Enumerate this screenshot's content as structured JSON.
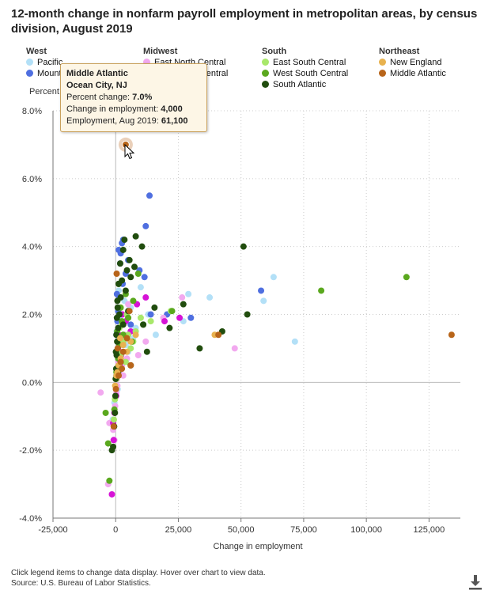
{
  "title": "12-month change in nonfarm payroll employment in metropolitan areas, by census division, August 2019",
  "legend": {
    "groups": [
      {
        "name": "West",
        "items": [
          {
            "label": "Pacific",
            "color": "#b3e0f7"
          },
          {
            "label": "Mountain",
            "color": "#4f6fe0"
          }
        ]
      },
      {
        "name": "Midwest",
        "items": [
          {
            "label": "East North Central",
            "color": "#f2a9ef"
          },
          {
            "label": "West North Central",
            "color": "#d613d6"
          }
        ]
      },
      {
        "name": "South",
        "items": [
          {
            "label": "East South Central",
            "color": "#a8e86a"
          },
          {
            "label": "West South Central",
            "color": "#5aa81e"
          },
          {
            "label": "South Atlantic",
            "color": "#214d0e"
          }
        ]
      },
      {
        "name": "Northeast",
        "items": [
          {
            "label": "New England",
            "color": "#e8b24f"
          },
          {
            "label": "Middle Atlantic",
            "color": "#b8651a"
          }
        ]
      }
    ]
  },
  "tooltip": {
    "division": "Middle Atlantic",
    "area": "Ocean City, NJ",
    "pct_label": "Percent change: ",
    "pct_value": "7.0%",
    "chg_label": "Change in employment: ",
    "chg_value": "4,000",
    "emp_label": "Employment, Aug 2019: ",
    "emp_value": "61,100"
  },
  "footer": {
    "note": "Click legend items to change data display. Hover over chart to view data.",
    "source": "Source: U.S. Bureau of Labor Statistics."
  },
  "icons": {
    "download": "download-icon",
    "cursor": "pointer-cursor-icon"
  },
  "chart_data": {
    "type": "scatter",
    "title": "12-month change in nonfarm payroll employment in metropolitan areas, by census division, August 2019",
    "xlabel": "Change in employment",
    "ylabel": "Percent change",
    "xlim": [
      -25000,
      137500
    ],
    "ylim": [
      -4.0,
      8.0
    ],
    "xticks": [
      -25000,
      0,
      25000,
      50000,
      75000,
      100000,
      125000
    ],
    "xtick_labels": [
      "-25,000",
      "0",
      "25,000",
      "50,000",
      "75,000",
      "100,000",
      "125,000"
    ],
    "yticks": [
      -4,
      -2,
      0,
      2,
      4,
      6,
      8
    ],
    "ytick_labels": [
      "-4.0%",
      "-2.0%",
      "0.0%",
      "2.0%",
      "4.0%",
      "6.0%",
      "8.0%"
    ],
    "grid": true,
    "legend_position": "top",
    "series": [
      {
        "name": "Pacific",
        "color": "#b3e0f7",
        "points": [
          [
            71500,
            1.2
          ],
          [
            63000,
            3.1
          ],
          [
            59000,
            2.4
          ],
          [
            37500,
            2.5
          ],
          [
            29000,
            2.6
          ],
          [
            16000,
            1.4
          ],
          [
            13000,
            2.0
          ],
          [
            10000,
            2.8
          ],
          [
            8000,
            1.6
          ],
          [
            6000,
            2.2
          ],
          [
            5000,
            0.9
          ],
          [
            4000,
            1.1
          ],
          [
            3000,
            1.7
          ],
          [
            2500,
            0.6
          ],
          [
            2000,
            1.3
          ],
          [
            1500,
            1.9
          ],
          [
            1000,
            0.8
          ],
          [
            700,
            0.4
          ],
          [
            400,
            1.5
          ],
          [
            200,
            0.2
          ],
          [
            -500,
            -0.6
          ],
          [
            -1200,
            -1.1
          ],
          [
            27000,
            1.8
          ],
          [
            22000,
            2.1
          ],
          [
            7000,
            1.3
          ],
          [
            3500,
            2.4
          ],
          [
            1200,
            2.7
          ],
          [
            800,
            -0.2
          ]
        ]
      },
      {
        "name": "Mountain",
        "color": "#4f6fe0",
        "points": [
          [
            58000,
            2.7
          ],
          [
            30000,
            1.9
          ],
          [
            20500,
            2.0
          ],
          [
            14000,
            2.0
          ],
          [
            13500,
            5.5
          ],
          [
            12000,
            4.6
          ],
          [
            11500,
            3.1
          ],
          [
            9500,
            3.3
          ],
          [
            5000,
            3.6
          ],
          [
            4000,
            3.2
          ],
          [
            3000,
            4.2
          ],
          [
            2500,
            4.1
          ],
          [
            2000,
            3.8
          ],
          [
            1500,
            2.5
          ],
          [
            1200,
            3.9
          ],
          [
            900,
            2.2
          ],
          [
            700,
            1.8
          ],
          [
            500,
            2.6
          ],
          [
            300,
            1.4
          ],
          [
            200,
            0.9
          ],
          [
            6000,
            1.7
          ],
          [
            2800,
            2.9
          ],
          [
            1800,
            3.5
          ],
          [
            1000,
            2.1
          ]
        ]
      },
      {
        "name": "East North Central",
        "color": "#f2a9ef",
        "points": [
          [
            47500,
            1.0
          ],
          [
            26500,
            2.5
          ],
          [
            19000,
            1.9
          ],
          [
            12000,
            1.2
          ],
          [
            9000,
            0.8
          ],
          [
            6000,
            1.2
          ],
          [
            4500,
            0.7
          ],
          [
            3500,
            1.4
          ],
          [
            2500,
            0.5
          ],
          [
            2000,
            0.9
          ],
          [
            1500,
            0.3
          ],
          [
            1000,
            0.6
          ],
          [
            600,
            0.1
          ],
          [
            300,
            -0.3
          ],
          [
            -200,
            -0.7
          ],
          [
            -1000,
            -1.4
          ],
          [
            -2500,
            -1.2
          ],
          [
            -3000,
            -3.0
          ],
          [
            -6000,
            -0.3
          ],
          [
            5000,
            2.3
          ],
          [
            3000,
            0.2
          ],
          [
            1800,
            1.1
          ],
          [
            700,
            -0.1
          ],
          [
            -500,
            -1.7
          ]
        ]
      },
      {
        "name": "West North Central",
        "color": "#d613d6",
        "points": [
          [
            25500,
            1.9
          ],
          [
            19500,
            1.8
          ],
          [
            12000,
            2.5
          ],
          [
            8500,
            2.3
          ],
          [
            6000,
            1.5
          ],
          [
            4000,
            1.8
          ],
          [
            3000,
            1.2
          ],
          [
            2200,
            0.8
          ],
          [
            1500,
            0.5
          ],
          [
            900,
            1.0
          ],
          [
            500,
            0.2
          ],
          [
            200,
            -0.4
          ],
          [
            -500,
            -0.9
          ],
          [
            -800,
            -1.7
          ],
          [
            -1500,
            -3.3
          ],
          [
            -1000,
            -1.2
          ],
          [
            2700,
            2.0
          ],
          [
            1200,
            1.4
          ]
        ]
      },
      {
        "name": "East South Central",
        "color": "#a8e86a",
        "points": [
          [
            22000,
            2.1
          ],
          [
            14000,
            1.8
          ],
          [
            10000,
            1.9
          ],
          [
            8000,
            1.5
          ],
          [
            6000,
            1.0
          ],
          [
            5000,
            1.4
          ],
          [
            4000,
            0.6
          ],
          [
            3000,
            1.2
          ],
          [
            2000,
            0.8
          ],
          [
            1500,
            1.6
          ],
          [
            1000,
            0.4
          ],
          [
            600,
            0.9
          ],
          [
            300,
            0.1
          ],
          [
            -300,
            -0.5
          ],
          [
            -700,
            -1.1
          ],
          [
            7000,
            1.2
          ],
          [
            4500,
            2.0
          ],
          [
            2500,
            1.7
          ]
        ]
      },
      {
        "name": "West South Central",
        "color": "#5aa81e",
        "points": [
          [
            116000,
            3.1
          ],
          [
            82000,
            2.7
          ],
          [
            22500,
            2.1
          ],
          [
            11000,
            1.7
          ],
          [
            9000,
            3.2
          ],
          [
            7000,
            2.4
          ],
          [
            5000,
            1.9
          ],
          [
            4000,
            2.6
          ],
          [
            3000,
            1.4
          ],
          [
            2000,
            2.2
          ],
          [
            1500,
            1.1
          ],
          [
            1000,
            0.7
          ],
          [
            600,
            1.5
          ],
          [
            300,
            0.3
          ],
          [
            -500,
            -0.8
          ],
          [
            -3000,
            -1.8
          ],
          [
            -4000,
            -0.9
          ],
          [
            -2500,
            -2.9
          ],
          [
            6500,
            1.2
          ],
          [
            2500,
            1.8
          ],
          [
            1200,
            2.9
          ]
        ]
      },
      {
        "name": "South Atlantic",
        "color": "#214d0e",
        "points": [
          [
            51000,
            4.0
          ],
          [
            52500,
            2.0
          ],
          [
            42500,
            1.5
          ],
          [
            33500,
            1.0
          ],
          [
            27000,
            2.3
          ],
          [
            21500,
            1.6
          ],
          [
            15500,
            2.2
          ],
          [
            12500,
            0.9
          ],
          [
            11000,
            1.7
          ],
          [
            10500,
            4.0
          ],
          [
            8000,
            4.3
          ],
          [
            7500,
            3.4
          ],
          [
            6000,
            3.1
          ],
          [
            5500,
            3.6
          ],
          [
            5000,
            2.1
          ],
          [
            4500,
            3.3
          ],
          [
            4000,
            2.7
          ],
          [
            3500,
            4.2
          ],
          [
            3000,
            3.9
          ],
          [
            2500,
            3.0
          ],
          [
            2000,
            2.5
          ],
          [
            1800,
            3.5
          ],
          [
            1500,
            2.0
          ],
          [
            1200,
            2.9
          ],
          [
            1000,
            1.6
          ],
          [
            800,
            2.2
          ],
          [
            600,
            1.2
          ],
          [
            500,
            1.9
          ],
          [
            400,
            0.8
          ],
          [
            300,
            1.4
          ],
          [
            200,
            0.4
          ],
          [
            100,
            0.9
          ],
          [
            0,
            0.1
          ],
          [
            -100,
            -0.4
          ],
          [
            -300,
            -0.9
          ],
          [
            -600,
            -1.3
          ],
          [
            -1000,
            -1.9
          ],
          [
            -1500,
            -2.0
          ],
          [
            3000,
            1.7
          ],
          [
            6000,
            0.5
          ],
          [
            2000,
            0.6
          ],
          [
            1000,
            0.3
          ],
          [
            700,
            2.4
          ]
        ]
      },
      {
        "name": "New England",
        "color": "#e8b24f",
        "points": [
          [
            39500,
            1.4
          ],
          [
            8000,
            1.4
          ],
          [
            6000,
            1.2
          ],
          [
            4500,
            0.9
          ],
          [
            3000,
            1.1
          ],
          [
            2000,
            0.7
          ],
          [
            1200,
            0.5
          ],
          [
            700,
            0.3
          ],
          [
            300,
            0.2
          ],
          [
            -200,
            -0.1
          ],
          [
            1800,
            1.3
          ]
        ]
      },
      {
        "name": "Middle Atlantic",
        "color": "#b8651a",
        "points": [
          [
            134000,
            1.4
          ],
          [
            41000,
            1.4
          ],
          [
            4000,
            7.0
          ],
          [
            6000,
            0.5
          ],
          [
            4500,
            1.3
          ],
          [
            3000,
            0.9
          ],
          [
            2000,
            0.6
          ],
          [
            1200,
            0.2
          ],
          [
            800,
            1.0
          ],
          [
            400,
            3.2
          ],
          [
            100,
            -0.2
          ],
          [
            -800,
            -1.3
          ],
          [
            5500,
            2.1
          ],
          [
            2500,
            0.4
          ]
        ]
      }
    ],
    "highlight": {
      "series": "Middle Atlantic",
      "x": 4000,
      "y": 7.0
    }
  }
}
